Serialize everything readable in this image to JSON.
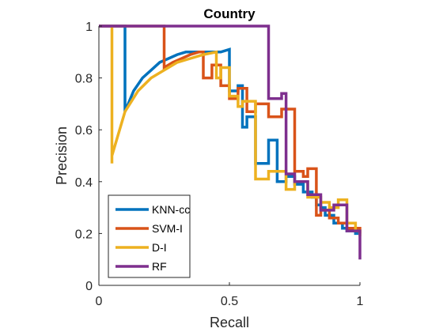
{
  "chart_data": {
    "type": "line",
    "title": "Country",
    "xlabel": "Recall",
    "ylabel": "Precision",
    "xlim": [
      0,
      1
    ],
    "ylim": [
      0,
      1
    ],
    "xticks": [
      0,
      0.5,
      1
    ],
    "xtick_labels": [
      "0",
      "0.5",
      "1"
    ],
    "yticks": [
      0,
      0.2,
      0.4,
      0.6,
      0.8,
      1
    ],
    "ytick_labels": [
      "0",
      "0.2",
      "0.4",
      "0.6",
      "0.8",
      "1"
    ],
    "grid": false,
    "legend_position": "bottom-left",
    "series": [
      {
        "name": "KNN-cc",
        "color": "#0072BD",
        "x": [
          0,
          0.1,
          0.1,
          0.133,
          0.167,
          0.2,
          0.233,
          0.267,
          0.3,
          0.333,
          0.367,
          0.4,
          0.433,
          0.467,
          0.467,
          0.5,
          0.5,
          0.533,
          0.533,
          0.55,
          0.55,
          0.567,
          0.567,
          0.6,
          0.6,
          0.65,
          0.65,
          0.683,
          0.683,
          0.717,
          0.717,
          0.75,
          0.75,
          0.783,
          0.783,
          0.817,
          0.817,
          0.833,
          0.833,
          0.85,
          0.85,
          0.867,
          0.867,
          0.9,
          0.9,
          0.933,
          0.933,
          0.95,
          0.95,
          0.983,
          0.983,
          1,
          1
        ],
        "y": [
          1,
          1,
          0.67,
          0.75,
          0.8,
          0.83,
          0.86,
          0.875,
          0.89,
          0.9,
          0.9,
          0.9,
          0.9,
          0.9,
          0.9,
          0.91,
          0.75,
          0.75,
          0.77,
          0.77,
          0.61,
          0.61,
          0.65,
          0.65,
          0.47,
          0.47,
          0.56,
          0.56,
          0.4,
          0.4,
          0.42,
          0.42,
          0.39,
          0.39,
          0.36,
          0.36,
          0.34,
          0.34,
          0.31,
          0.31,
          0.3,
          0.3,
          0.27,
          0.27,
          0.24,
          0.24,
          0.22,
          0.22,
          0.21,
          0.21,
          0.2,
          0.2,
          0.2
        ]
      },
      {
        "name": "SVM-I",
        "color": "#D95319",
        "x": [
          0,
          0.25,
          0.25,
          0.283,
          0.317,
          0.35,
          0.383,
          0.4,
          0.4,
          0.433,
          0.433,
          0.467,
          0.467,
          0.5,
          0.5,
          0.533,
          0.533,
          0.567,
          0.567,
          0.6,
          0.6,
          0.65,
          0.65,
          0.7,
          0.7,
          0.75,
          0.75,
          0.783,
          0.783,
          0.8,
          0.8,
          0.833,
          0.833,
          0.85,
          0.85,
          0.883,
          0.883,
          0.917,
          0.917,
          0.95,
          0.95,
          1,
          1
        ],
        "y": [
          1,
          1,
          0.84,
          0.86,
          0.875,
          0.89,
          0.9,
          0.9,
          0.8,
          0.8,
          0.85,
          0.85,
          0.77,
          0.77,
          0.72,
          0.72,
          0.76,
          0.76,
          0.67,
          0.67,
          0.7,
          0.7,
          0.65,
          0.65,
          0.68,
          0.68,
          0.44,
          0.44,
          0.42,
          0.42,
          0.45,
          0.45,
          0.27,
          0.27,
          0.29,
          0.29,
          0.26,
          0.26,
          0.24,
          0.24,
          0.22,
          0.22,
          0.2
        ]
      },
      {
        "name": "D-I",
        "color": "#EDB120",
        "x": [
          0.05,
          0.05,
          0.05,
          0.1,
          0.15,
          0.2,
          0.25,
          0.3,
          0.35,
          0.4,
          0.45,
          0.45,
          0.467,
          0.467,
          0.5,
          0.5,
          0.533,
          0.533,
          0.55,
          0.55,
          0.6,
          0.6,
          0.6,
          0.65,
          0.65,
          0.717,
          0.717,
          0.75,
          0.75,
          0.8,
          0.8,
          0.85,
          0.85,
          0.883,
          0.883,
          0.917,
          0.917,
          0.95,
          0.95,
          0.983,
          0.983,
          1,
          1
        ],
        "y": [
          0.47,
          1,
          0.5,
          0.67,
          0.75,
          0.8,
          0.83,
          0.86,
          0.875,
          0.89,
          0.9,
          0.8,
          0.8,
          0.84,
          0.84,
          0.73,
          0.73,
          0.69,
          0.69,
          0.71,
          0.71,
          0.58,
          0.41,
          0.41,
          0.44,
          0.44,
          0.37,
          0.37,
          0.4,
          0.4,
          0.34,
          0.34,
          0.32,
          0.32,
          0.3,
          0.3,
          0.33,
          0.33,
          0.24,
          0.24,
          0.21,
          0.21,
          0.19
        ]
      },
      {
        "name": "RF",
        "color": "#7E2F8E",
        "x": [
          0,
          0.65,
          0.65,
          0.7,
          0.7,
          0.717,
          0.717,
          0.75,
          0.75,
          0.8,
          0.8,
          0.85,
          0.85,
          0.9,
          0.9,
          0.95,
          0.95,
          1,
          1
        ],
        "y": [
          1,
          1,
          0.72,
          0.72,
          0.74,
          0.74,
          0.43,
          0.43,
          0.4,
          0.4,
          0.35,
          0.35,
          0.29,
          0.29,
          0.31,
          0.31,
          0.21,
          0.21,
          0.1
        ]
      }
    ]
  }
}
